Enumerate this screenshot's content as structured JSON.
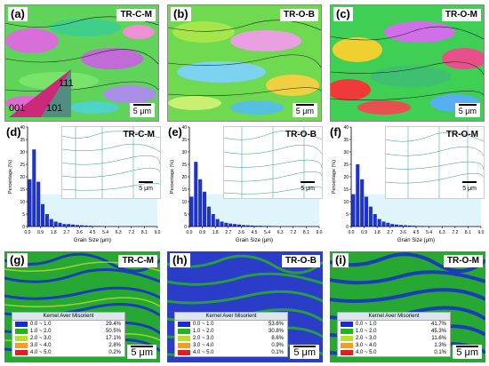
{
  "top": [
    {
      "label": "(a)",
      "tag": "TR-C-M",
      "scale": "5 μm",
      "triangle": [
        "111",
        "001",
        "101"
      ]
    },
    {
      "label": "(b)",
      "tag": "TR-O-B",
      "scale": "5 μm"
    },
    {
      "label": "(c)",
      "tag": "TR-O-M",
      "scale": "5 μm"
    }
  ],
  "middle": [
    {
      "label": "(d)",
      "tag": "TR-C-M",
      "scale": "5 μm"
    },
    {
      "label": "(e)",
      "tag": "TR-O-B",
      "scale": "5 μm"
    },
    {
      "label": "(f)",
      "tag": "TR-O-M",
      "scale": "5 μm"
    }
  ],
  "bottom": [
    {
      "label": "(g)",
      "tag": "TR-C-M",
      "scale": "5 μm",
      "legend_title": "Kernel Aver Misorient",
      "rows": [
        {
          "range": "0.0 ~ 1.0",
          "pct": "29.4%",
          "color": "#1a2ccf"
        },
        {
          "range": "1.0 ~ 2.0",
          "pct": "50.5%",
          "color": "#22b61e"
        },
        {
          "range": "2.0 ~ 3.0",
          "pct": "17.1%",
          "color": "#b8e02a"
        },
        {
          "range": "3.0 ~ 4.0",
          "pct": "2.8%",
          "color": "#f0a020"
        },
        {
          "range": "4.0 ~ 5.0",
          "pct": "0.2%",
          "color": "#e02020"
        }
      ]
    },
    {
      "label": "(h)",
      "tag": "TR-O-B",
      "scale": "5 μm",
      "legend_title": "Kernel Aver Misorient",
      "rows": [
        {
          "range": "0.0 ~ 1.0",
          "pct": "53.6%",
          "color": "#1a2ccf"
        },
        {
          "range": "1.0 ~ 2.0",
          "pct": "30.8%",
          "color": "#22b61e"
        },
        {
          "range": "2.0 ~ 3.0",
          "pct": "8.6%",
          "color": "#b8e02a"
        },
        {
          "range": "3.0 ~ 4.0",
          "pct": "0.9%",
          "color": "#f0a020"
        },
        {
          "range": "4.0 ~ 5.0",
          "pct": "0.1%",
          "color": "#e02020"
        }
      ]
    },
    {
      "label": "(i)",
      "tag": "TR-O-M",
      "scale": "5 μm",
      "legend_title": "Kernel Aver Misorient",
      "rows": [
        {
          "range": "0.0 ~ 1.0",
          "pct": "41.7%",
          "color": "#1a2ccf"
        },
        {
          "range": "1.0 ~ 2.0",
          "pct": "45.3%",
          "color": "#22b61e"
        },
        {
          "range": "2.0 ~ 3.0",
          "pct": "11.6%",
          "color": "#b8e02a"
        },
        {
          "range": "3.0 ~ 4.0",
          "pct": "1.3%",
          "color": "#f0a020"
        },
        {
          "range": "4.0 ~ 5.0",
          "pct": "0.1%",
          "color": "#e02020"
        }
      ]
    }
  ],
  "chart_data": [
    {
      "type": "bar",
      "xlabel": "Grain Size (μm)",
      "ylabel": "Percentage (%)",
      "ylim": [
        0,
        40
      ],
      "yticks": [
        "0",
        "5",
        "10",
        "15",
        "20",
        "25",
        "30",
        "35",
        "40"
      ],
      "xticks": [
        "0.0",
        "0.9",
        "1.8",
        "2.7",
        "3.6",
        "4.5",
        "5.4",
        "6.3",
        "7.2",
        "8.1",
        "9.0"
      ],
      "bin_width": 0.3,
      "x": [
        0.15,
        0.45,
        0.75,
        1.05,
        1.35,
        1.65,
        1.95,
        2.25,
        2.55,
        2.85,
        3.15,
        3.45,
        3.75,
        4.05,
        4.35,
        4.65,
        4.95,
        5.25
      ],
      "values": [
        19,
        31,
        18,
        9,
        5,
        3,
        2,
        1.5,
        1,
        1,
        0.8,
        0.6,
        0.5,
        0.4,
        0.3,
        0.2,
        0.2,
        0.1
      ]
    },
    {
      "type": "bar",
      "xlabel": "Grain Size (μm)",
      "ylabel": "Percentage (%)",
      "ylim": [
        0,
        40
      ],
      "yticks": [
        "0",
        "5",
        "10",
        "15",
        "20",
        "25",
        "30",
        "35",
        "40"
      ],
      "xticks": [
        "0.0",
        "0.9",
        "1.8",
        "2.7",
        "3.6",
        "4.5",
        "5.4",
        "6.3",
        "7.2",
        "8.1",
        "9.0"
      ],
      "bin_width": 0.3,
      "x": [
        0.15,
        0.45,
        0.75,
        1.05,
        1.35,
        1.65,
        1.95,
        2.25,
        2.55,
        2.85,
        3.15,
        3.45,
        3.75,
        4.05,
        4.35,
        4.65,
        4.95,
        5.25,
        5.55,
        5.85
      ],
      "values": [
        12,
        26,
        19,
        14,
        8,
        5,
        3,
        2,
        1.5,
        1.2,
        1,
        0.8,
        0.6,
        0.5,
        0.4,
        0.3,
        0.3,
        0.2,
        0.2,
        0.1
      ]
    },
    {
      "type": "bar",
      "xlabel": "Grain Size (μm)",
      "ylabel": "Percentage (%)",
      "ylim": [
        0,
        40
      ],
      "yticks": [
        "0",
        "5",
        "10",
        "15",
        "20",
        "25",
        "30",
        "35",
        "40"
      ],
      "xticks": [
        "0.0",
        "0.9",
        "1.8",
        "2.7",
        "3.6",
        "4.5",
        "5.4",
        "6.3",
        "7.2",
        "8.1",
        "9.0"
      ],
      "bin_width": 0.3,
      "x": [
        0.15,
        0.45,
        0.75,
        1.05,
        1.35,
        1.65,
        1.95,
        2.25,
        2.55,
        2.85,
        3.15,
        3.45,
        3.75,
        4.05,
        4.35,
        4.65,
        4.95,
        5.25
      ],
      "values": [
        13,
        25,
        19,
        12,
        8,
        5,
        3,
        2,
        1.5,
        1,
        0.8,
        0.6,
        0.5,
        0.4,
        0.3,
        0.2,
        0.2,
        0.1
      ]
    }
  ]
}
